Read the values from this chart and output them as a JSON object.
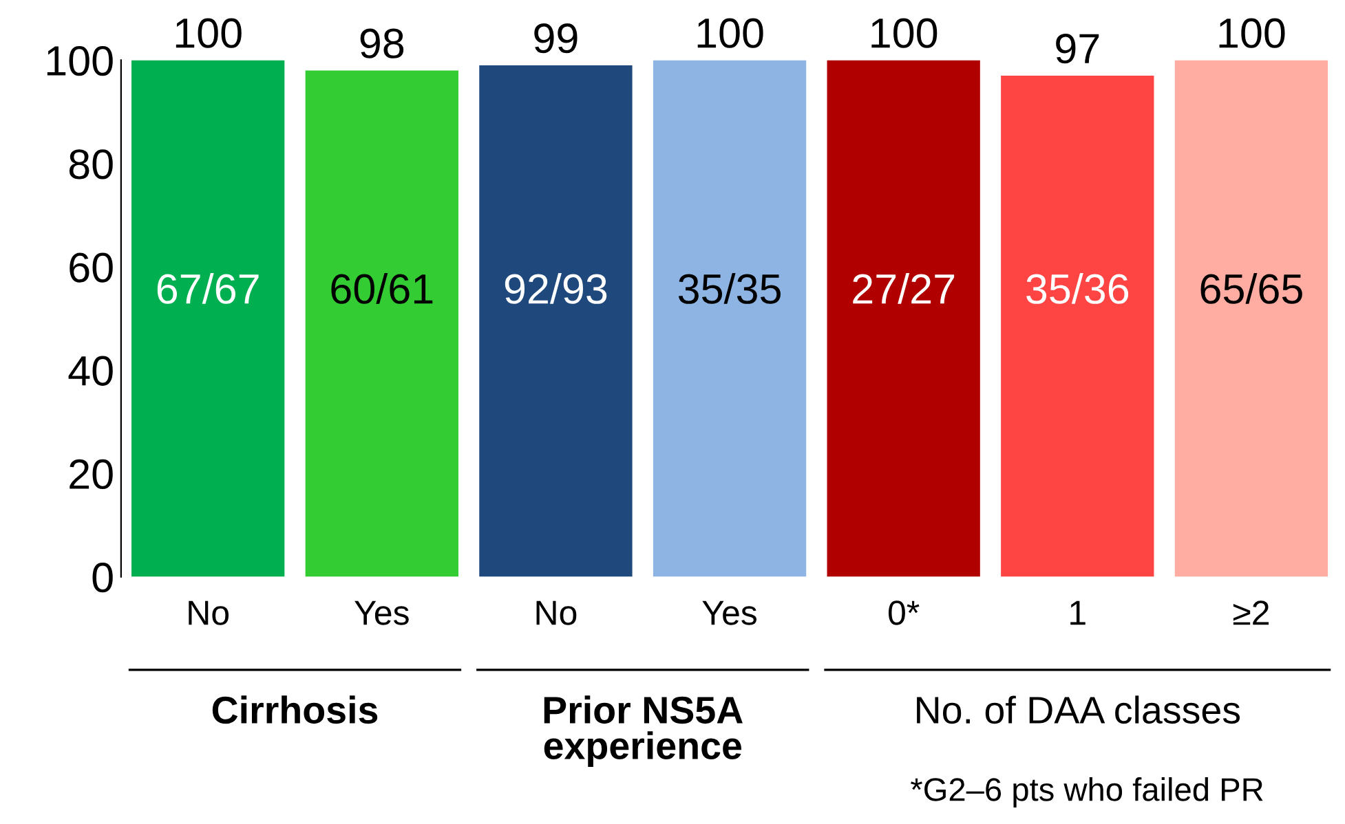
{
  "chart_data": {
    "type": "bar",
    "categories": [
      "No",
      "Yes",
      "No",
      "Yes",
      "0*",
      "1",
      "≥2"
    ],
    "values": [
      100,
      98,
      99,
      100,
      100,
      97,
      100
    ],
    "colors": [
      "#00b050",
      "#33cc33",
      "#1f497d",
      "#8eb4e3",
      "#b00000",
      "#ff4444",
      "#ffaca2"
    ],
    "data_labels": true,
    "ylim": [
      0,
      100
    ],
    "yticks": [
      0,
      20,
      40,
      60,
      80,
      100
    ],
    "grid": false,
    "legend": false,
    "annotations": [
      "67/67",
      "60/61",
      "92/93",
      "35/35",
      "27/27",
      "35/36",
      "65/65",
      "Cirrhosis",
      "Prior NS5A\nexperience",
      "No. of DAA classes",
      "*G2–6 pts who failed PR"
    ]
  }
}
